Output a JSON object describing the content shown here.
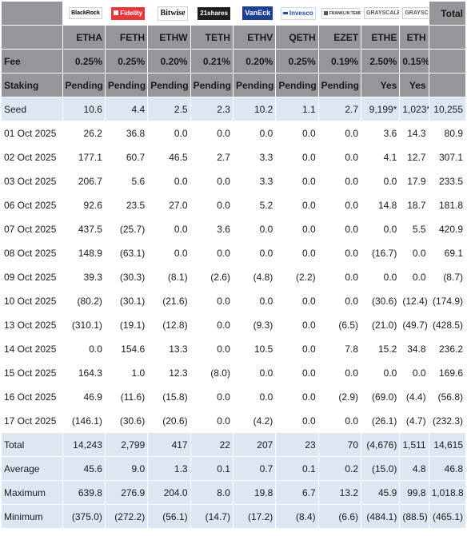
{
  "funds": [
    {
      "logo": "BlackRock",
      "logo_style": "lg-blackrock",
      "mark": false,
      "ticker": "ETHA",
      "fee": "0.25%",
      "staking": "Pending"
    },
    {
      "logo": "Fidelity",
      "logo_style": "lg-fidelity",
      "mark": true,
      "ticker": "FETH",
      "fee": "0.25%",
      "staking": "Pending"
    },
    {
      "logo": "Bitwise",
      "logo_style": "lg-bitwise",
      "mark": false,
      "ticker": "ETHW",
      "fee": "0.20%",
      "staking": "Pending"
    },
    {
      "logo": "21shares",
      "logo_style": "lg-21shares",
      "mark": false,
      "ticker": "TETH",
      "fee": "0.21%",
      "staking": "Pending"
    },
    {
      "logo": "VanEck",
      "logo_style": "lg-vaneck",
      "mark": false,
      "ticker": "ETHV",
      "fee": "0.20%",
      "staking": "Pending"
    },
    {
      "logo": "Invesco",
      "logo_style": "lg-invesco",
      "mark": true,
      "ticker": "QETH",
      "fee": "0.25%",
      "staking": "Pending"
    },
    {
      "logo": "FRANKLIN TEMPLETON",
      "logo_style": "lg-franklin",
      "mark": true,
      "ticker": "EZET",
      "fee": "0.19%",
      "staking": "Pending"
    },
    {
      "logo": "GRAYSCALE",
      "logo_style": "lg-grayscale",
      "mark": false,
      "ticker": "ETHE",
      "fee": "2.50%",
      "staking": "Yes"
    },
    {
      "logo": "GRAYSCALE",
      "logo_style": "lg-grayscale",
      "mark": false,
      "ticker": "ETH",
      "fee": "0.15%",
      "staking": "Yes"
    }
  ],
  "header_labels": {
    "total": "Total",
    "fee": "Fee",
    "staking": "Staking"
  },
  "negative_color": "#e0273a",
  "band_color": "#dde7f4",
  "header_color": "#95969a",
  "rows": [
    {
      "label": "Seed",
      "band": true,
      "values": [
        "10.6",
        "4.4",
        "2.5",
        "2.3",
        "10.2",
        "1.1",
        "2.7",
        "9,199*",
        "1,023*",
        "10,255"
      ]
    },
    {
      "label": "01 Oct 2025",
      "band": false,
      "values": [
        "26.2",
        "36.8",
        "0.0",
        "0.0",
        "0.0",
        "0.0",
        "0.0",
        "3.6",
        "14.3",
        "80.9"
      ]
    },
    {
      "label": "02 Oct 2025",
      "band": false,
      "values": [
        "177.1",
        "60.7",
        "46.5",
        "2.7",
        "3.3",
        "0.0",
        "0.0",
        "4.1",
        "12.7",
        "307.1"
      ]
    },
    {
      "label": "03 Oct 2025",
      "band": false,
      "values": [
        "206.7",
        "5.6",
        "0.0",
        "0.0",
        "3.3",
        "0.0",
        "0.0",
        "0.0",
        "17.9",
        "233.5"
      ]
    },
    {
      "label": "06 Oct 2025",
      "band": false,
      "values": [
        "92.6",
        "23.5",
        "27.0",
        "0.0",
        "5.2",
        "0.0",
        "0.0",
        "14.8",
        "18.7",
        "181.8"
      ]
    },
    {
      "label": "07 Oct 2025",
      "band": false,
      "values": [
        "437.5",
        "(25.7)",
        "0.0",
        "3.6",
        "0.0",
        "0.0",
        "0.0",
        "0.0",
        "5.5",
        "420.9"
      ]
    },
    {
      "label": "08 Oct 2025",
      "band": false,
      "values": [
        "148.9",
        "(63.1)",
        "0.0",
        "0.0",
        "0.0",
        "0.0",
        "0.0",
        "(16.7)",
        "0.0",
        "69.1"
      ]
    },
    {
      "label": "09 Oct 2025",
      "band": false,
      "values": [
        "39.3",
        "(30.3)",
        "(8.1)",
        "(2.6)",
        "(4.8)",
        "(2.2)",
        "0.0",
        "0.0",
        "0.0",
        "(8.7)"
      ]
    },
    {
      "label": "10 Oct 2025",
      "band": false,
      "values": [
        "(80.2)",
        "(30.1)",
        "(21.6)",
        "0.0",
        "0.0",
        "0.0",
        "0.0",
        "(30.6)",
        "(12.4)",
        "(174.9)"
      ]
    },
    {
      "label": "13 Oct 2025",
      "band": false,
      "values": [
        "(310.1)",
        "(19.1)",
        "(12.8)",
        "0.0",
        "(9.3)",
        "0.0",
        "(6.5)",
        "(21.0)",
        "(49.7)",
        "(428.5)"
      ]
    },
    {
      "label": "14 Oct 2025",
      "band": false,
      "values": [
        "0.0",
        "154.6",
        "13.3",
        "0.0",
        "10.5",
        "0.0",
        "7.8",
        "15.2",
        "34.8",
        "236.2"
      ]
    },
    {
      "label": "15 Oct 2025",
      "band": false,
      "values": [
        "164.3",
        "1.0",
        "12.3",
        "(8.0)",
        "0.0",
        "0.0",
        "0.0",
        "0.0",
        "0.0",
        "169.6"
      ]
    },
    {
      "label": "16 Oct 2025",
      "band": false,
      "values": [
        "46.9",
        "(11.6)",
        "(15.8)",
        "0.0",
        "0.0",
        "0.0",
        "(2.9)",
        "(69.0)",
        "(4.4)",
        "(56.8)"
      ]
    },
    {
      "label": "17 Oct 2025",
      "band": false,
      "values": [
        "(146.1)",
        "(30.6)",
        "(20.6)",
        "0.0",
        "(4.2)",
        "0.0",
        "0.0",
        "(26.1)",
        "(4.7)",
        "(232.3)"
      ]
    },
    {
      "label": "Total",
      "band": true,
      "values": [
        "14,243",
        "2,799",
        "417",
        "22",
        "207",
        "23",
        "70",
        "(4,676)",
        "1,511",
        "14,615"
      ]
    },
    {
      "label": "Average",
      "band": true,
      "values": [
        "45.6",
        "9.0",
        "1.3",
        "0.1",
        "0.7",
        "0.1",
        "0.2",
        "(15.0)",
        "4.8",
        "46.8"
      ]
    },
    {
      "label": "Maximum",
      "band": true,
      "values": [
        "639.8",
        "276.9",
        "204.0",
        "8.0",
        "19.8",
        "6.7",
        "13.2",
        "45.9",
        "99.8",
        "1,018.8"
      ]
    },
    {
      "label": "Minimum",
      "band": true,
      "values": [
        "(375.0)",
        "(272.2)",
        "(56.1)",
        "(14.7)",
        "(17.2)",
        "(8.4)",
        "(6.6)",
        "(484.1)",
        "(88.5)",
        "(465.1)"
      ]
    }
  ]
}
